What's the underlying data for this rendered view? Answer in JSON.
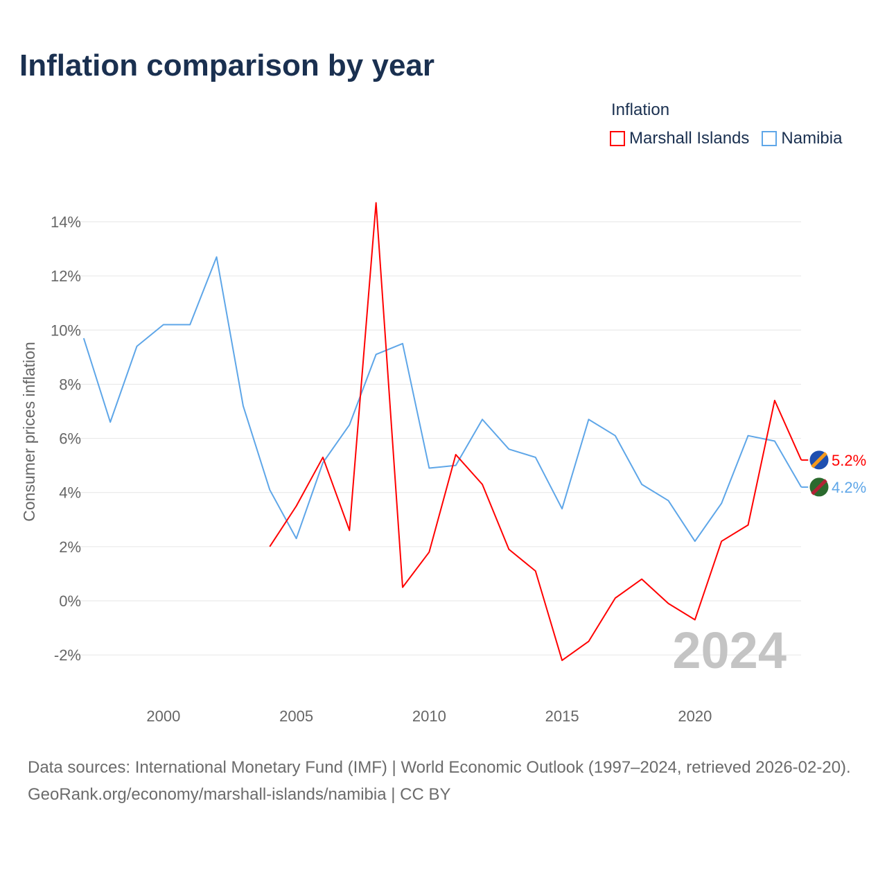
{
  "title": "Inflation comparison by year",
  "legend": {
    "title": "Inflation",
    "items": [
      {
        "name": "Marshall Islands",
        "color": "#ff0000"
      },
      {
        "name": "Namibia",
        "color": "#5ea6e8"
      }
    ]
  },
  "chart_data": {
    "type": "line",
    "title": "Inflation comparison by year",
    "xlabel": "",
    "ylabel": "Consumer prices inflation",
    "ylim": [
      -3.5,
      14.8
    ],
    "xlim": [
      1997,
      2024
    ],
    "grid": true,
    "legend_position": "top-right",
    "x_ticks": [
      2000,
      2005,
      2010,
      2015,
      2020
    ],
    "y_ticks": [
      -2,
      0,
      2,
      4,
      6,
      8,
      10,
      12,
      14
    ],
    "y_tick_labels": [
      "-2%",
      "0%",
      "2%",
      "4%",
      "6%",
      "8%",
      "10%",
      "12%",
      "14%"
    ],
    "year_watermark": "2024",
    "series": [
      {
        "name": "Marshall Islands",
        "color": "#ff0000",
        "end_label": "5.2%",
        "x": [
          2004,
          2005,
          2006,
          2007,
          2008,
          2009,
          2010,
          2011,
          2012,
          2013,
          2014,
          2015,
          2016,
          2017,
          2018,
          2019,
          2020,
          2021,
          2022,
          2023,
          2024
        ],
        "values": [
          2.0,
          3.5,
          5.3,
          2.6,
          14.7,
          0.5,
          1.8,
          5.4,
          4.3,
          1.9,
          1.1,
          -2.2,
          -1.5,
          0.1,
          0.8,
          -0.1,
          -0.7,
          2.2,
          2.8,
          7.4,
          5.2
        ]
      },
      {
        "name": "Namibia",
        "color": "#5ea6e8",
        "end_label": "4.2%",
        "x": [
          1997,
          1998,
          1999,
          2000,
          2001,
          2002,
          2003,
          2004,
          2005,
          2006,
          2007,
          2008,
          2009,
          2010,
          2011,
          2012,
          2013,
          2014,
          2015,
          2016,
          2017,
          2018,
          2019,
          2020,
          2021,
          2022,
          2023,
          2024
        ],
        "values": [
          9.7,
          6.6,
          9.4,
          10.2,
          10.2,
          12.7,
          7.2,
          4.1,
          2.3,
          5.1,
          6.5,
          9.1,
          9.5,
          4.9,
          5.0,
          6.7,
          5.6,
          5.3,
          3.4,
          6.7,
          6.1,
          4.3,
          3.7,
          2.2,
          3.6,
          6.1,
          5.9,
          4.2
        ]
      }
    ]
  },
  "footer": {
    "sources": "Data sources: International Monetary Fund (IMF) | World Economic Outlook (1997–2024, retrieved 2026-02-20).",
    "link": "GeoRank.org/economy/marshall-islands/namibia | CC BY"
  }
}
